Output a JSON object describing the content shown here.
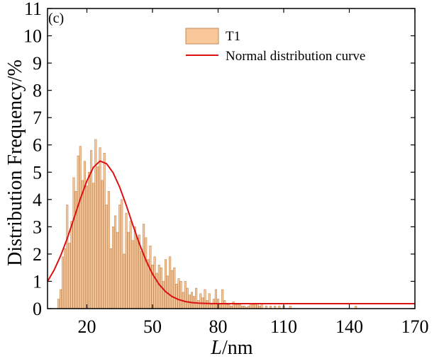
{
  "chart_data": {
    "type": "bar",
    "panel_label": "(c)",
    "xlabel_italic": "L",
    "xlabel_rest": "/nm",
    "ylabel": "Distribution Frequency/%",
    "xlim": [
      2,
      170
    ],
    "ylim": [
      0,
      11
    ],
    "x_ticks": [
      20,
      50,
      80,
      110,
      140,
      170
    ],
    "y_ticks": [
      0,
      1,
      2,
      3,
      4,
      5,
      6,
      7,
      8,
      9,
      10,
      11
    ],
    "legend": {
      "placement": "top-center",
      "bar_label": "T1",
      "curve_label": "Normal distribution curve"
    },
    "colors": {
      "bar_fill": "#f8c898",
      "bar_stroke": "#c08858",
      "curve": "#dd1111",
      "axis": "#000000"
    },
    "series": [
      {
        "name": "T1",
        "kind": "bar",
        "bin_width": 1,
        "x": [
          7,
          8,
          9,
          10,
          11,
          12,
          13,
          14,
          15,
          16,
          17,
          18,
          19,
          20,
          21,
          22,
          23,
          24,
          25,
          26,
          27,
          28,
          29,
          30,
          31,
          32,
          33,
          34,
          35,
          36,
          37,
          38,
          39,
          40,
          41,
          42,
          43,
          44,
          45,
          46,
          47,
          48,
          49,
          50,
          51,
          52,
          53,
          54,
          55,
          56,
          57,
          58,
          59,
          60,
          61,
          62,
          63,
          64,
          65,
          66,
          67,
          68,
          69,
          70,
          71,
          72,
          73,
          74,
          75,
          76,
          77,
          78,
          79,
          80,
          81,
          82,
          83,
          84,
          85,
          86,
          87,
          88,
          89,
          90,
          91,
          92,
          93,
          94,
          95,
          96,
          97,
          98,
          99,
          100,
          102,
          104,
          106,
          108,
          110,
          113,
          143
        ],
        "values": [
          0.35,
          0.7,
          1.9,
          2.2,
          3.8,
          2.4,
          3.2,
          4.8,
          4.3,
          5.6,
          5.95,
          4.7,
          5.4,
          4.5,
          5.0,
          5.8,
          4.6,
          6.2,
          5.2,
          5.9,
          4.7,
          5.7,
          3.8,
          4.3,
          2.2,
          3.0,
          3.4,
          2.8,
          3.8,
          4.0,
          2.0,
          3.5,
          2.8,
          3.2,
          2.5,
          3.0,
          2.6,
          2.7,
          2.1,
          3.1,
          2.6,
          1.8,
          2.3,
          1.6,
          1.9,
          1.3,
          1.6,
          1.5,
          1.0,
          1.8,
          1.2,
          1.9,
          1.4,
          1.5,
          0.9,
          1.1,
          1.0,
          0.6,
          1.0,
          0.75,
          0.5,
          0.6,
          0.45,
          0.75,
          0.3,
          0.55,
          0.4,
          0.7,
          0.3,
          0.55,
          0.15,
          0.35,
          0.7,
          0.35,
          0.2,
          0.7,
          0.3,
          0.15,
          0.15,
          0.1,
          0.25,
          0.15,
          0.15,
          0.15,
          0.1,
          0.1,
          0.05,
          0.1,
          0.2,
          0.15,
          0.2,
          0.2,
          0.1,
          0.2,
          0.1,
          0.1,
          0.1,
          0.1,
          0.1,
          0.1,
          0.1
        ]
      },
      {
        "name": "Normal distribution curve",
        "kind": "line",
        "x": [
          2,
          5,
          8,
          11,
          14,
          17,
          20,
          23,
          26,
          29,
          32,
          35,
          38,
          41,
          44,
          47,
          50,
          53,
          56,
          59,
          62,
          65,
          68,
          71,
          74,
          77,
          80,
          90,
          100,
          120,
          140,
          160,
          170
        ],
        "y": [
          1.0,
          1.41,
          1.94,
          2.57,
          3.29,
          4.02,
          4.68,
          5.18,
          5.41,
          5.31,
          4.98,
          4.45,
          3.79,
          3.07,
          2.38,
          1.77,
          1.27,
          0.89,
          0.62,
          0.44,
          0.33,
          0.26,
          0.22,
          0.2,
          0.19,
          0.185,
          0.18,
          0.18,
          0.18,
          0.18,
          0.18,
          0.18,
          0.18
        ]
      }
    ]
  }
}
